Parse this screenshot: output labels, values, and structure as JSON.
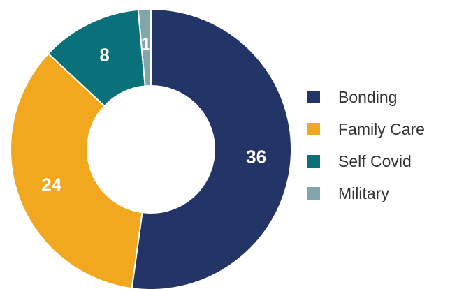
{
  "chart_data": {
    "type": "pie",
    "donut": true,
    "categories": [
      "Bonding",
      "Family Care",
      "Self Covid",
      "Military"
    ],
    "values": [
      36,
      24,
      8,
      1
    ],
    "colors": [
      "#233567",
      "#F2A81E",
      "#0A7079",
      "#82A5AA"
    ],
    "data_labels": [
      "36",
      "24",
      "8",
      "1"
    ],
    "legend": {
      "position": "right",
      "items": [
        {
          "label": "Bonding",
          "color": "#233567"
        },
        {
          "label": "Family Care",
          "color": "#F2A81E"
        },
        {
          "label": "Self Covid",
          "color": "#0A7079"
        },
        {
          "label": "Military",
          "color": "#82A5AA"
        }
      ]
    }
  }
}
